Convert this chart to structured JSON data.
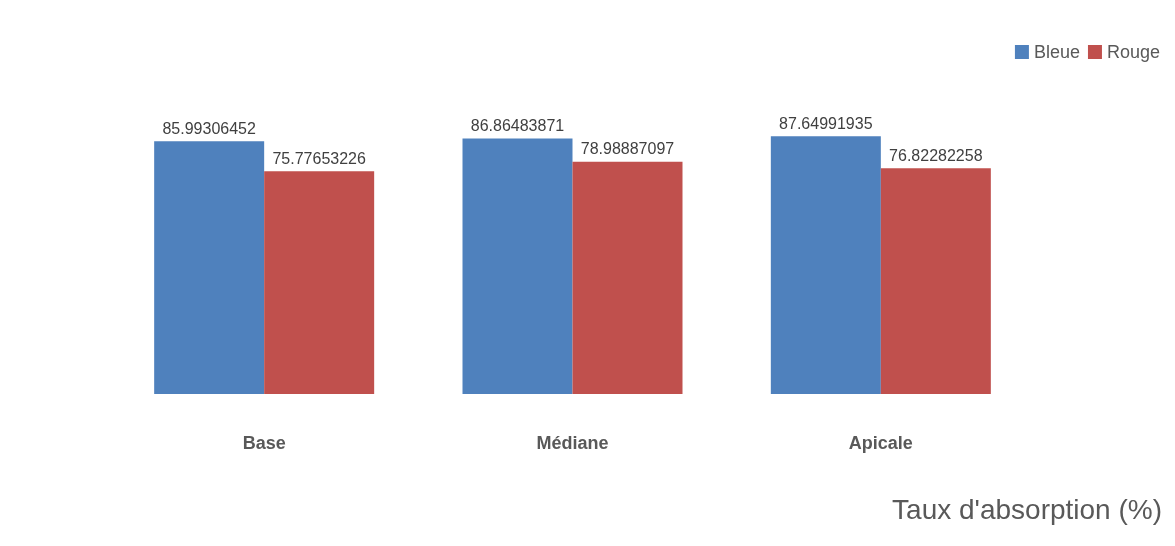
{
  "chart_data": {
    "type": "bar",
    "title": "Taux d'absorption (%)",
    "categories": [
      "Base",
      "Médiane",
      "Apicale"
    ],
    "series": [
      {
        "name": "Bleue",
        "color": "#4f81bd",
        "values": [
          85.99306452,
          86.86483871,
          87.64991935
        ]
      },
      {
        "name": "Rouge",
        "color": "#c0504d",
        "values": [
          75.77653226,
          78.98887097,
          76.82282258
        ]
      }
    ],
    "tick_labels": "x",
    "legend": "top right",
    "data_labels": true
  }
}
